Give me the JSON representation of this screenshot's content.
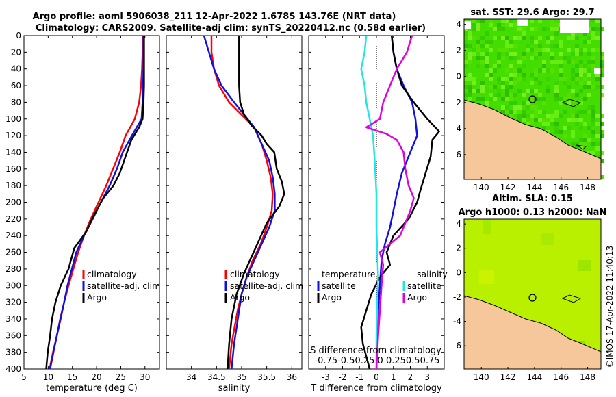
{
  "figure": {
    "title_line1": "Argo profile: aoml 5906038_211 12-Apr-2022 1.678S 143.76E (NRT data)",
    "title_line2": "Climatology: CARS2009. Satellite-adj clim: synTS_20220412.nc (0.58d earlier)",
    "vertical_stamp": "©IMOS 17-Apr-2022 11:40:13"
  },
  "colors": {
    "climatology": "#ff0000",
    "satellite": "#1010e0",
    "argo": "#000000",
    "sat_salinity": "#22e5e5",
    "argo_salinity": "#e000e0",
    "land": "#f5c79a",
    "sst_field": "#44dd00",
    "sla_field": "#b8f000"
  },
  "chart_data": [
    {
      "type": "line",
      "name": "temperature-profile",
      "xlabel": "temperature (deg C)",
      "ylabel": "",
      "xlim": [
        5,
        33
      ],
      "ylim": [
        400,
        0
      ],
      "xticks": [
        5,
        10,
        15,
        20,
        25,
        30
      ],
      "yticks": [
        0,
        20,
        40,
        60,
        80,
        100,
        120,
        140,
        160,
        180,
        200,
        220,
        240,
        260,
        280,
        300,
        320,
        340,
        360,
        380,
        400
      ],
      "legend": [
        "climatology",
        "satellite-adj. clim",
        "Argo"
      ],
      "series": [
        {
          "name": "climatology",
          "color": "#ff0000",
          "points": [
            [
              29.6,
              0
            ],
            [
              29.5,
              20
            ],
            [
              29.4,
              40
            ],
            [
              29.2,
              60
            ],
            [
              28.8,
              80
            ],
            [
              27.9,
              100
            ],
            [
              26.0,
              120
            ],
            [
              24.8,
              140
            ],
            [
              23.4,
              160
            ],
            [
              22.0,
              180
            ],
            [
              20.4,
              200
            ],
            [
              18.8,
              220
            ],
            [
              17.4,
              240
            ],
            [
              16.2,
              260
            ],
            [
              15.2,
              280
            ],
            [
              14.2,
              300
            ],
            [
              13.3,
              320
            ],
            [
              12.6,
              340
            ],
            [
              11.8,
              360
            ],
            [
              11.0,
              380
            ],
            [
              10.3,
              400
            ]
          ]
        },
        {
          "name": "satellite-adj. clim",
          "color": "#1010e0",
          "points": [
            [
              29.7,
              0
            ],
            [
              29.7,
              20
            ],
            [
              29.7,
              40
            ],
            [
              29.6,
              60
            ],
            [
              29.5,
              80
            ],
            [
              29.3,
              100
            ],
            [
              27.3,
              120
            ],
            [
              25.4,
              140
            ],
            [
              24.2,
              160
            ],
            [
              22.7,
              180
            ],
            [
              20.9,
              200
            ],
            [
              19.2,
              220
            ],
            [
              17.4,
              240
            ],
            [
              15.8,
              260
            ],
            [
              14.9,
              280
            ],
            [
              14.0,
              300
            ],
            [
              13.3,
              320
            ],
            [
              12.5,
              340
            ],
            [
              11.8,
              360
            ],
            [
              11.1,
              380
            ],
            [
              10.4,
              400
            ]
          ]
        },
        {
          "name": "Argo",
          "color": "#000000",
          "points": [
            [
              29.8,
              0
            ],
            [
              29.8,
              20
            ],
            [
              29.8,
              40
            ],
            [
              29.8,
              60
            ],
            [
              29.7,
              80
            ],
            [
              29.5,
              100
            ],
            [
              28.8,
              110
            ],
            [
              27.2,
              125
            ],
            [
              26.0,
              145
            ],
            [
              24.8,
              165
            ],
            [
              23.5,
              180
            ],
            [
              21.4,
              195
            ],
            [
              19.5,
              215
            ],
            [
              17.9,
              235
            ],
            [
              15.4,
              255
            ],
            [
              14.2,
              280
            ],
            [
              12.6,
              300
            ],
            [
              11.5,
              320
            ],
            [
              10.8,
              340
            ],
            [
              10.4,
              360
            ],
            [
              9.9,
              380
            ],
            [
              9.6,
              400
            ]
          ]
        }
      ]
    },
    {
      "type": "line",
      "name": "salinity-profile",
      "xlabel": "salinity",
      "xlim": [
        33.5,
        36.2
      ],
      "ylim": [
        400,
        0
      ],
      "xticks": [
        34,
        34.5,
        35,
        35.5,
        36
      ],
      "legend": [
        "climatology",
        "satellite-adj. clim",
        "Argo"
      ],
      "series": [
        {
          "name": "climatology",
          "color": "#ff0000",
          "points": [
            [
              34.4,
              0
            ],
            [
              34.4,
              20
            ],
            [
              34.45,
              40
            ],
            [
              34.55,
              60
            ],
            [
              34.75,
              80
            ],
            [
              35.0,
              95
            ],
            [
              35.25,
              110
            ],
            [
              35.4,
              130
            ],
            [
              35.5,
              150
            ],
            [
              35.58,
              170
            ],
            [
              35.62,
              190
            ],
            [
              35.6,
              210
            ],
            [
              35.5,
              230
            ],
            [
              35.38,
              250
            ],
            [
              35.22,
              270
            ],
            [
              35.1,
              290
            ],
            [
              35.0,
              310
            ],
            [
              34.92,
              330
            ],
            [
              34.86,
              350
            ],
            [
              34.8,
              370
            ],
            [
              34.75,
              400
            ]
          ]
        },
        {
          "name": "satellite-adj. clim",
          "color": "#1010e0",
          "points": [
            [
              34.25,
              0
            ],
            [
              34.35,
              20
            ],
            [
              34.45,
              40
            ],
            [
              34.6,
              60
            ],
            [
              34.85,
              80
            ],
            [
              35.05,
              95
            ],
            [
              35.25,
              110
            ],
            [
              35.4,
              130
            ],
            [
              35.55,
              150
            ],
            [
              35.62,
              170
            ],
            [
              35.66,
              190
            ],
            [
              35.66,
              210
            ],
            [
              35.55,
              230
            ],
            [
              35.4,
              250
            ],
            [
              35.25,
              270
            ],
            [
              35.1,
              290
            ],
            [
              35.0,
              310
            ],
            [
              34.95,
              330
            ],
            [
              34.9,
              350
            ],
            [
              34.85,
              370
            ],
            [
              34.8,
              400
            ]
          ]
        },
        {
          "name": "Argo",
          "color": "#000000",
          "points": [
            [
              34.95,
              0
            ],
            [
              34.95,
              20
            ],
            [
              34.95,
              40
            ],
            [
              34.95,
              60
            ],
            [
              34.97,
              80
            ],
            [
              35.05,
              95
            ],
            [
              35.2,
              108
            ],
            [
              35.4,
              120
            ],
            [
              35.5,
              130
            ],
            [
              35.65,
              140
            ],
            [
              35.7,
              160
            ],
            [
              35.8,
              175
            ],
            [
              35.85,
              190
            ],
            [
              35.75,
              205
            ],
            [
              35.62,
              215
            ],
            [
              35.5,
              225
            ],
            [
              35.35,
              245
            ],
            [
              35.2,
              265
            ],
            [
              35.05,
              285
            ],
            [
              34.9,
              310
            ],
            [
              34.8,
              340
            ],
            [
              34.75,
              370
            ],
            [
              34.72,
              400
            ]
          ]
        }
      ]
    },
    {
      "type": "line",
      "name": "difference-profile",
      "xlabel": "T difference from climatology",
      "top_label": "S difference from climatology",
      "top_ticks_label": "-0.75-0.50.25 0  0.250.50.75",
      "xlim": [
        -4,
        4
      ],
      "ylim": [
        400,
        0
      ],
      "xticks": [
        -3,
        -2,
        -1,
        0,
        1,
        2,
        3
      ],
      "legend_temperature_title": "temperature",
      "legend_salinity_title": "salinity",
      "legend_temperature": [
        "satellite",
        "Argo"
      ],
      "legend_salinity": [
        "satellite",
        "Argo"
      ],
      "series": [
        {
          "name": "T satellite",
          "color": "#1010e0",
          "points": [
            [
              0.9,
              0
            ],
            [
              1.0,
              20
            ],
            [
              1.2,
              40
            ],
            [
              1.6,
              60
            ],
            [
              2.1,
              80
            ],
            [
              2.3,
              100
            ],
            [
              2.4,
              120
            ],
            [
              2.0,
              140
            ],
            [
              1.5,
              165
            ],
            [
              1.2,
              190
            ],
            [
              1.0,
              210
            ],
            [
              0.8,
              230
            ],
            [
              0.5,
              250
            ],
            [
              0.3,
              270
            ],
            [
              0.2,
              300
            ],
            [
              0.1,
              330
            ],
            [
              0.05,
              360
            ],
            [
              0.0,
              400
            ]
          ]
        },
        {
          "name": "T Argo",
          "color": "#000000",
          "points": [
            [
              0.9,
              0
            ],
            [
              1.0,
              20
            ],
            [
              1.2,
              40
            ],
            [
              1.5,
              60
            ],
            [
              2.2,
              80
            ],
            [
              3.0,
              100
            ],
            [
              3.7,
              115
            ],
            [
              3.3,
              125
            ],
            [
              3.2,
              145
            ],
            [
              2.9,
              165
            ],
            [
              2.6,
              185
            ],
            [
              2.4,
              200
            ],
            [
              1.9,
              220
            ],
            [
              1.0,
              240
            ],
            [
              0.6,
              260
            ],
            [
              0.8,
              275
            ],
            [
              0.2,
              290
            ],
            [
              -0.3,
              310
            ],
            [
              -0.6,
              330
            ],
            [
              -0.9,
              350
            ],
            [
              -0.8,
              370
            ],
            [
              -0.4,
              400
            ]
          ]
        },
        {
          "name": "S satellite",
          "color": "#22e5e5",
          "points": [
            [
              -0.6,
              0
            ],
            [
              -0.7,
              20
            ],
            [
              -0.9,
              40
            ],
            [
              -0.7,
              60
            ],
            [
              -0.6,
              80
            ],
            [
              -0.4,
              100
            ],
            [
              -0.2,
              120
            ],
            [
              -0.1,
              150
            ],
            [
              0.0,
              190
            ],
            [
              0.0,
              230
            ],
            [
              0.05,
              260
            ],
            [
              0.1,
              290
            ],
            [
              0.05,
              320
            ],
            [
              0.0,
              360
            ],
            [
              0.0,
              400
            ]
          ]
        },
        {
          "name": "S Argo",
          "color": "#e000e0",
          "points": [
            [
              2.1,
              0
            ],
            [
              1.8,
              20
            ],
            [
              1.2,
              40
            ],
            [
              0.8,
              60
            ],
            [
              0.4,
              80
            ],
            [
              0.2,
              100
            ],
            [
              -0.6,
              110
            ],
            [
              0.6,
              118
            ],
            [
              1.2,
              125
            ],
            [
              1.6,
              140
            ],
            [
              1.7,
              160
            ],
            [
              1.9,
              180
            ],
            [
              2.2,
              195
            ],
            [
              2.0,
              210
            ],
            [
              1.7,
              225
            ],
            [
              1.4,
              240
            ],
            [
              0.2,
              260
            ],
            [
              0.4,
              275
            ],
            [
              0.3,
              300
            ],
            [
              0.2,
              330
            ],
            [
              0.1,
              360
            ],
            [
              0.0,
              400
            ]
          ]
        }
      ]
    },
    {
      "type": "heatmap",
      "name": "sst-map",
      "title": "sat. SST: 29.6  Argo: 29.7",
      "xticks": [
        140,
        142,
        144,
        146,
        148
      ],
      "yticks": [
        4,
        2,
        0,
        -2,
        -4,
        -6
      ],
      "xlim": [
        138.7,
        149
      ],
      "ylim": [
        -7.9,
        4.4
      ],
      "profile_marker": [
        143.76,
        -1.678
      ]
    },
    {
      "type": "heatmap",
      "name": "sla-map",
      "title_line1": "Altim. SLA: 0.15",
      "title_line2": "Argo h1000: 0.13 h2000: NaN",
      "xticks": [
        140,
        142,
        144,
        146,
        148
      ],
      "yticks": [
        4,
        2,
        0,
        -2,
        -4,
        -6
      ],
      "xlim": [
        138.7,
        149
      ],
      "ylim": [
        -7.9,
        4.4
      ],
      "profile_marker": [
        143.76,
        -1.678
      ]
    }
  ]
}
